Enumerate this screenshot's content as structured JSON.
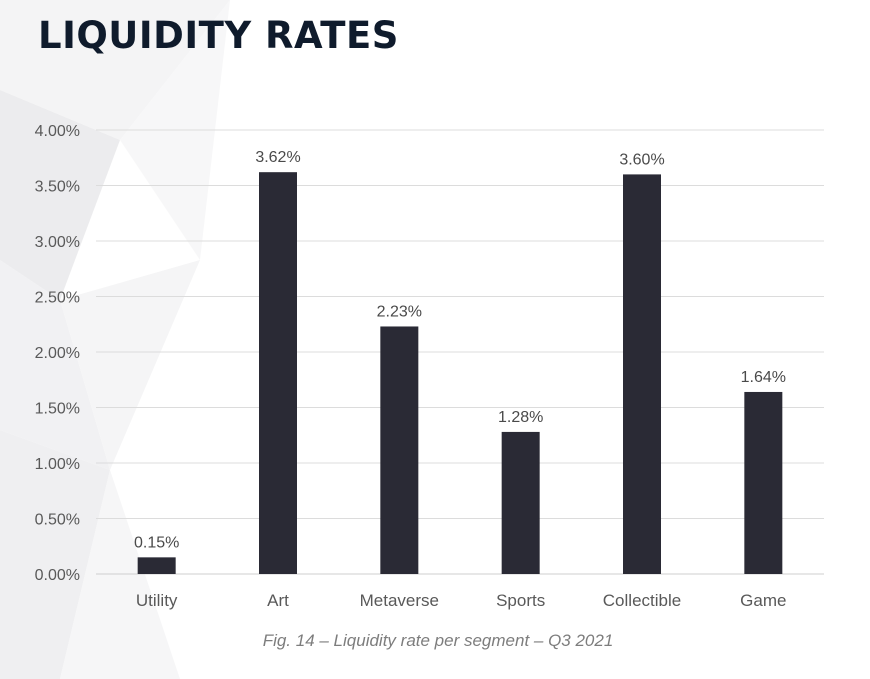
{
  "page": {
    "title": "LIQUIDITY RATES",
    "caption": "Fig. 14 – Liquidity rate per segment – Q3 2021"
  },
  "chart_data": {
    "type": "bar",
    "title": "",
    "xlabel": "",
    "ylabel": "",
    "categories": [
      "Utility",
      "Art",
      "Metaverse",
      "Sports",
      "Collectible",
      "Game"
    ],
    "values": [
      0.15,
      3.62,
      2.23,
      1.28,
      3.6,
      1.64
    ],
    "data_labels": [
      "0.15%",
      "3.62%",
      "2.23%",
      "1.28%",
      "3.60%",
      "1.64%"
    ],
    "ylim": [
      0,
      4
    ],
    "y_ticks": [
      0,
      0.5,
      1,
      1.5,
      2,
      2.5,
      3,
      3.5,
      4
    ],
    "y_tick_labels": [
      "0.00%",
      "0.50%",
      "1.00%",
      "1.50%",
      "2.00%",
      "2.50%",
      "3.00%",
      "3.50%",
      "4.00%"
    ],
    "grid": true,
    "bar_color": "#2a2a35",
    "grid_color": "#dcdcdc"
  }
}
